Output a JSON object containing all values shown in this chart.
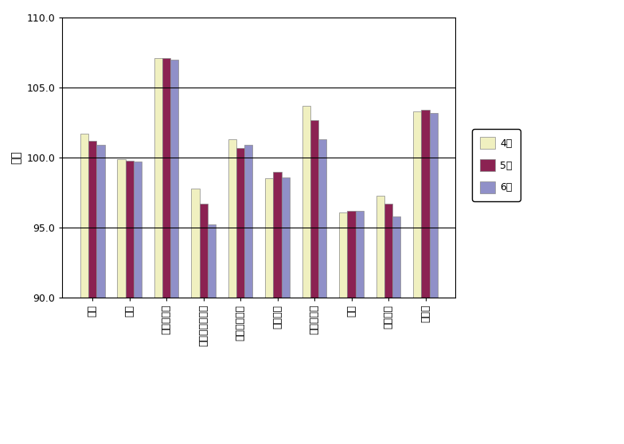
{
  "categories": [
    "食料",
    "住居",
    "光熱・水道",
    "家具・家事用品",
    "被服及び履物",
    "保健医療",
    "交通・通信",
    "教育",
    "教養娯楽",
    "諸雑費"
  ],
  "april": [
    101.7,
    99.9,
    107.1,
    97.8,
    101.3,
    98.5,
    103.7,
    96.1,
    97.3,
    103.3
  ],
  "may": [
    101.2,
    99.8,
    107.1,
    96.7,
    100.7,
    99.0,
    102.7,
    96.2,
    96.7,
    103.4
  ],
  "june": [
    100.9,
    99.7,
    107.0,
    95.2,
    100.9,
    98.6,
    101.3,
    96.2,
    95.8,
    103.2
  ],
  "april_color": "#f0f0c0",
  "may_color": "#8b2252",
  "june_color": "#9090c8",
  "ylabel": "指数",
  "ylim_min": 90.0,
  "ylim_max": 110.0,
  "yticks": [
    90.0,
    95.0,
    100.0,
    105.0,
    110.0
  ],
  "legend_april": "4月",
  "legend_may": "5月",
  "legend_june": "6月",
  "bar_width": 0.22,
  "grid_color": "#000000",
  "background_color": "#ffffff",
  "plot_bg_color": "#ffffff"
}
